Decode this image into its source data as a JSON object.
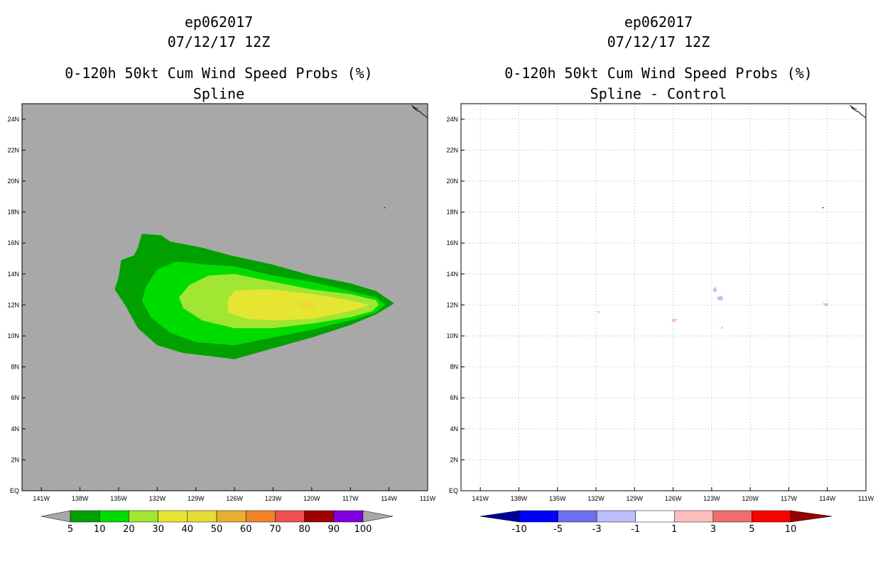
{
  "left_panel": {
    "title_lines": [
      "ep062017",
      "07/12/17 12Z",
      "0-120h 50kt Cum Wind Speed Probs (%)",
      "Spline"
    ],
    "background_color": "#a8a8a8",
    "colorbar": {
      "labels": [
        "5",
        "10",
        "20",
        "30",
        "40",
        "50",
        "60",
        "70",
        "80",
        "90",
        "100"
      ],
      "colors": [
        "#a8a8a8",
        "#00a000",
        "#00dc00",
        "#a0e632",
        "#e6e632",
        "#e6dc32",
        "#e6af2d",
        "#f08228",
        "#f05050",
        "#a00000",
        "#8200dc",
        "#a8a8a8"
      ]
    }
  },
  "right_panel": {
    "title_lines": [
      "ep062017",
      "07/12/17 12Z",
      "0-120h 50kt Cum Wind Speed Probs (%)",
      "Spline - Control"
    ],
    "background_color": "#ffffff",
    "colorbar": {
      "labels": [
        "-10",
        "-5",
        "-3",
        "-1",
        "1",
        "3",
        "5",
        "10"
      ],
      "colors": [
        "#000096",
        "#0000ff",
        "#6e6ef0",
        "#bebeff",
        "#ffffff",
        "#ffbebe",
        "#f06e6e",
        "#ff0000",
        "#960000"
      ]
    }
  },
  "chart_data": [
    {
      "type": "contour_map",
      "title": "ep062017 07/12/17 12Z 0-120h 50kt Cum Wind Speed Probs (%) Spline",
      "x_ticks": [
        "141W",
        "138W",
        "135W",
        "132W",
        "129W",
        "126W",
        "123W",
        "120W",
        "117W",
        "114W",
        "111W"
      ],
      "y_ticks": [
        "EQ",
        "2N",
        "4N",
        "6N",
        "8N",
        "10N",
        "12N",
        "14N",
        "16N",
        "18N",
        "20N",
        "22N",
        "24N"
      ],
      "xlim": [
        -142.5,
        -111
      ],
      "ylim": [
        0,
        25
      ],
      "contour_levels": [
        5,
        10,
        20,
        30,
        40,
        50,
        60,
        70,
        80,
        90,
        100
      ],
      "contours": [
        {
          "level": 5,
          "points": [
            [
              -135.3,
              13
            ],
            [
              -135,
              13.8
            ],
            [
              -134.8,
              14.9
            ],
            [
              -133.8,
              15.2
            ],
            [
              -133.5,
              15.7
            ],
            [
              -133.2,
              16.6
            ],
            [
              -131.7,
              16.5
            ],
            [
              -131,
              16.1
            ],
            [
              -128.5,
              15.7
            ],
            [
              -126.3,
              15.2
            ],
            [
              -123,
              14.6
            ],
            [
              -120,
              13.9
            ],
            [
              -117,
              13.4
            ],
            [
              -115,
              12.9
            ],
            [
              -113.6,
              12.1
            ],
            [
              -115,
              11.4
            ],
            [
              -117,
              10.7
            ],
            [
              -120,
              9.9
            ],
            [
              -123,
              9.2
            ],
            [
              -126,
              8.5
            ],
            [
              -128,
              8.7
            ],
            [
              -130,
              8.9
            ],
            [
              -132,
              9.4
            ],
            [
              -133.5,
              10.5
            ],
            [
              -134.5,
              12
            ]
          ]
        },
        {
          "level": 10,
          "points": [
            [
              -133.2,
              12.3
            ],
            [
              -132.8,
              13.3
            ],
            [
              -132,
              14.3
            ],
            [
              -130.5,
              14.8
            ],
            [
              -128,
              14.6
            ],
            [
              -126,
              14.5
            ],
            [
              -123,
              13.9
            ],
            [
              -120,
              13.5
            ],
            [
              -117,
              12.9
            ],
            [
              -115,
              12.5
            ],
            [
              -114.3,
              12
            ],
            [
              -115,
              11.5
            ],
            [
              -117,
              11
            ],
            [
              -120,
              10.4
            ],
            [
              -123,
              9.9
            ],
            [
              -126,
              9.4
            ],
            [
              -129,
              9.6
            ],
            [
              -131,
              10.2
            ],
            [
              -132.5,
              11.2
            ]
          ]
        },
        {
          "level": 20,
          "points": [
            [
              -130.3,
              12.5
            ],
            [
              -129.5,
              13.3
            ],
            [
              -128,
              13.9
            ],
            [
              -126,
              14
            ],
            [
              -123,
              13.5
            ],
            [
              -120,
              13
            ],
            [
              -117,
              12.7
            ],
            [
              -115,
              12.3
            ],
            [
              -114.8,
              12
            ],
            [
              -115.3,
              11.6
            ],
            [
              -117,
              11.2
            ],
            [
              -120,
              10.8
            ],
            [
              -123,
              10.5
            ],
            [
              -126,
              10.5
            ],
            [
              -128.5,
              11
            ],
            [
              -130,
              11.8
            ]
          ]
        },
        {
          "level": 30,
          "points": [
            [
              -126.5,
              12.4
            ],
            [
              -126,
              12.9
            ],
            [
              -124.5,
              13
            ],
            [
              -123,
              13
            ],
            [
              -120,
              12.7
            ],
            [
              -117,
              12.3
            ],
            [
              -115.5,
              12
            ],
            [
              -117,
              11.6
            ],
            [
              -120,
              11.1
            ],
            [
              -123,
              11
            ],
            [
              -125,
              11.1
            ],
            [
              -126.5,
              11.5
            ]
          ]
        },
        {
          "level": 40,
          "points": [
            [
              -121.2,
              12.1
            ],
            [
              -120.6,
              12.3
            ],
            [
              -119.7,
              12.1
            ],
            [
              -119.9,
              11.8
            ],
            [
              -120.8,
              11.8
            ]
          ]
        }
      ]
    },
    {
      "type": "contour_map",
      "title": "ep062017 07/12/17 12Z 0-120h 50kt Cum Wind Speed Probs (%) Spline - Control",
      "x_ticks": [
        "141W",
        "138W",
        "135W",
        "132W",
        "129W",
        "126W",
        "123W",
        "120W",
        "117W",
        "114W",
        "111W"
      ],
      "y_ticks": [
        "EQ",
        "2N",
        "4N",
        "6N",
        "8N",
        "10N",
        "12N",
        "14N",
        "16N",
        "18N",
        "20N",
        "22N",
        "24N"
      ],
      "xlim": [
        -142.5,
        -111
      ],
      "ylim": [
        0,
        25
      ],
      "contour_levels": [
        -10,
        -5,
        -3,
        -1,
        1,
        3,
        5,
        10
      ],
      "contours": [
        {
          "level": -1,
          "points": [
            [
              -122.9,
              13
            ],
            [
              -122.7,
              13.2
            ],
            [
              -122.6,
              12.9
            ],
            [
              -122.8,
              12.8
            ]
          ]
        },
        {
          "level": -1,
          "points": [
            [
              -122.6,
              12.5
            ],
            [
              -122.2,
              12.6
            ],
            [
              -122.1,
              12.3
            ],
            [
              -122.5,
              12.3
            ]
          ]
        },
        {
          "level": -1,
          "points": [
            [
              -114.4,
              12.1
            ],
            [
              -113.9,
              12.1
            ],
            [
              -114.1,
              11.9
            ]
          ]
        },
        {
          "level": 1,
          "points": [
            [
              -126.1,
              11.1
            ],
            [
              -125.7,
              11.1
            ],
            [
              -125.8,
              10.9
            ],
            [
              -126.1,
              10.9
            ]
          ]
        },
        {
          "level": 1,
          "points": [
            [
              -131.9,
              11.6
            ],
            [
              -131.7,
              11.6
            ],
            [
              -131.8,
              11.4
            ]
          ]
        },
        {
          "level": 1,
          "points": [
            [
              -122.3,
              10.6
            ],
            [
              -122.1,
              10.6
            ],
            [
              -122.2,
              10.4
            ]
          ]
        }
      ]
    }
  ]
}
